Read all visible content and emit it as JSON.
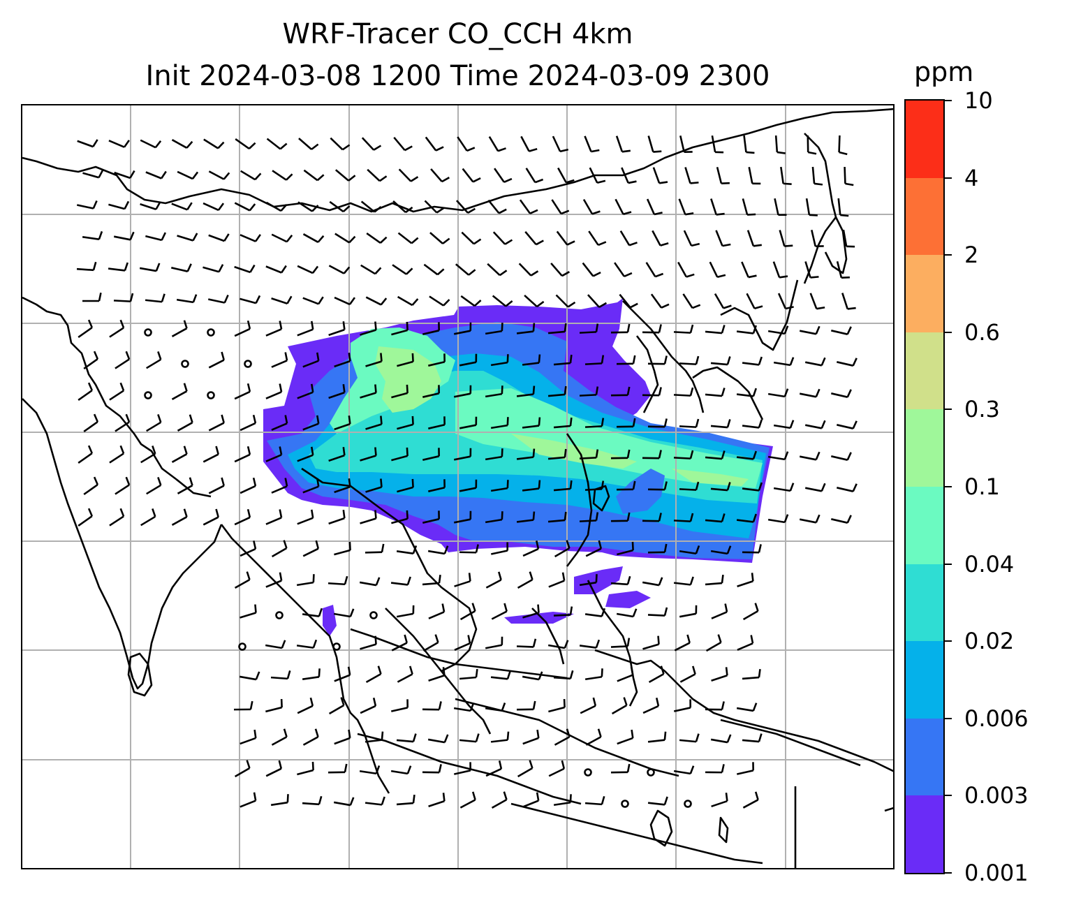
{
  "title": {
    "line1": "WRF-Tracer CO_CCH 4km",
    "line2": "Init 2024-03-08 1200 Time 2024-03-09 2300"
  },
  "colorbar": {
    "unit": "ppm",
    "levels": [
      "0.001",
      "0.003",
      "0.006",
      "0.02",
      "0.04",
      "0.1",
      "0.3",
      "0.6",
      "2",
      "4",
      "10"
    ],
    "colors": [
      "#6a2cf7",
      "#3676f4",
      "#05b1ea",
      "#2fddd3",
      "#6bfac1",
      "#9ff79a",
      "#d0e08a",
      "#fcae60",
      "#fd7035",
      "#fc2e18"
    ]
  },
  "map": {
    "gridlines": true,
    "background": "#ffffff",
    "coastline_color": "#000000",
    "gridline_color": "#b0b0b0",
    "wind_barbs": true
  }
}
